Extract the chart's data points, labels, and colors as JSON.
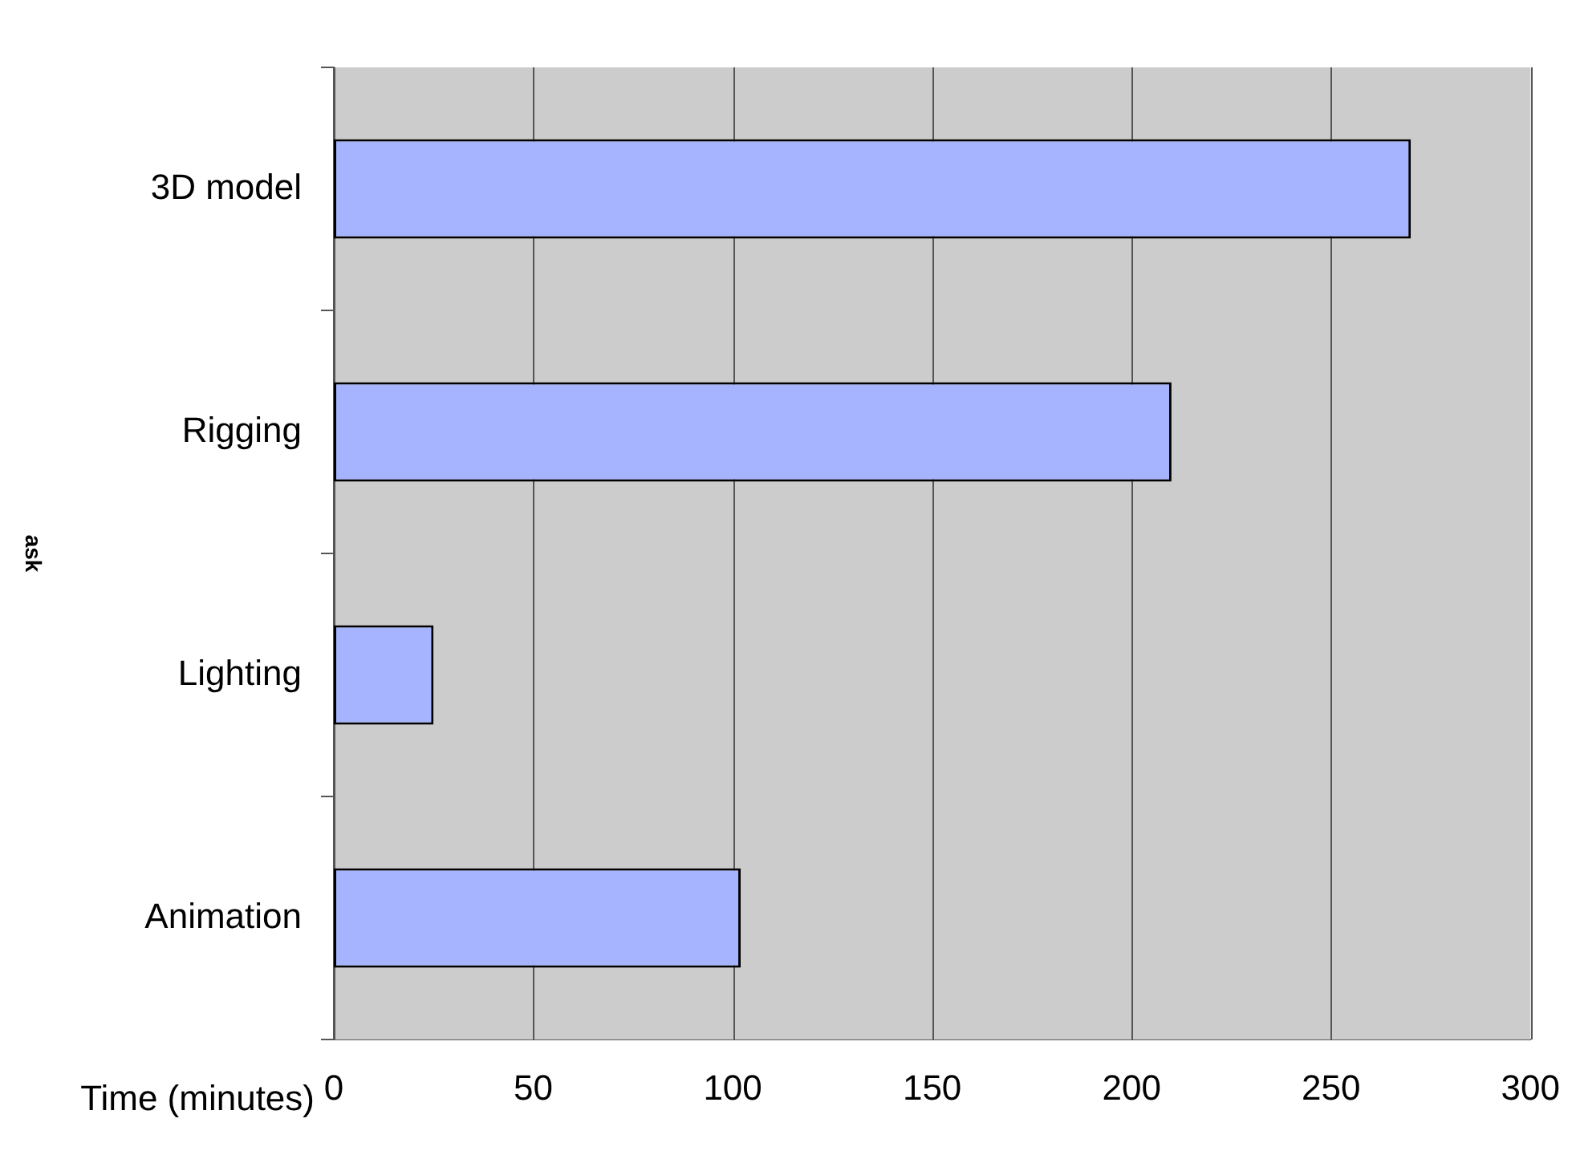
{
  "chart_data": {
    "type": "bar",
    "orientation": "horizontal",
    "ylabel": "ask",
    "xlabel": "Time (minutes)",
    "categories": [
      "3D model",
      "Rigging",
      "Lighting",
      "Animation"
    ],
    "values": [
      270,
      210,
      25,
      102
    ],
    "color": "#a6b4ff",
    "xlim": [
      0,
      300
    ],
    "xticks": [
      0,
      50,
      100,
      150,
      200,
      250,
      300
    ],
    "grid": "x",
    "legend": false
  }
}
